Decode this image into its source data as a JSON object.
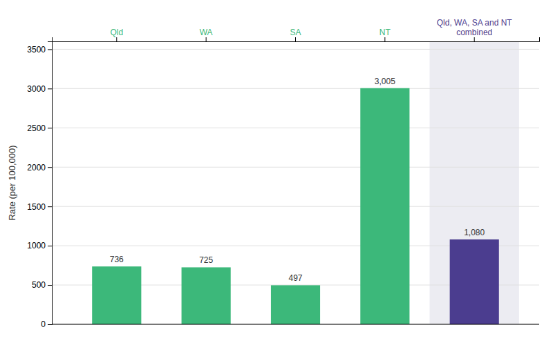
{
  "chart_data": {
    "type": "bar",
    "categories": [
      "Qld",
      "WA",
      "SA",
      "NT",
      "Qld, WA, SA and NT\ncombined"
    ],
    "values": [
      736,
      725,
      497,
      3005,
      1080
    ],
    "value_labels": [
      "736",
      "725",
      "497",
      "3,005",
      "1,080"
    ],
    "colors": [
      "#3cb87a",
      "#3cb87a",
      "#3cb87a",
      "#3cb87a",
      "#4b3d8f"
    ],
    "ylabel": "Rate (per 100,000)",
    "ylim": [
      0,
      3600
    ],
    "yticks": [
      0,
      500,
      1000,
      1500,
      2000,
      2500,
      3000,
      3500
    ],
    "grid": true,
    "data_labels": true
  }
}
